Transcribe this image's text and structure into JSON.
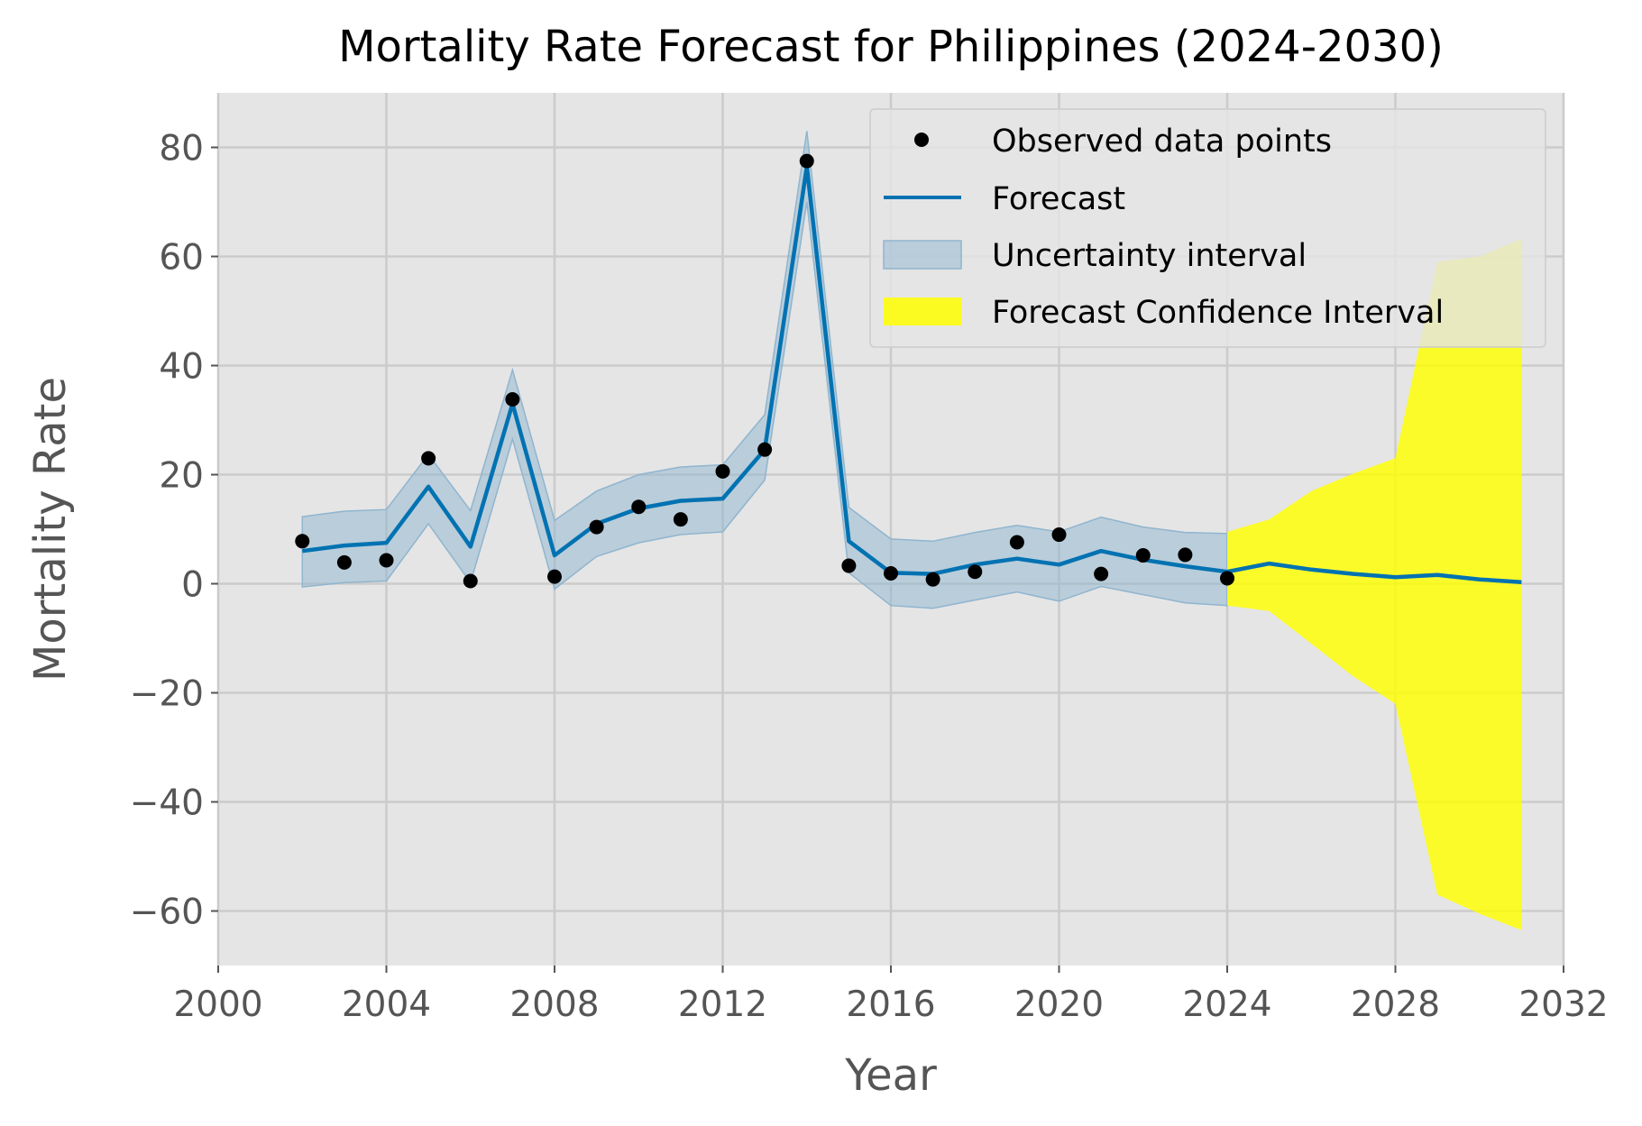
{
  "chart_data": {
    "type": "line",
    "title": "Mortality Rate Forecast for Philippines (2024-2030)",
    "xlabel": "Year",
    "ylabel": "Mortality Rate",
    "xlim": [
      2000,
      2032
    ],
    "ylim": [
      -70,
      90
    ],
    "xticks": [
      2000,
      2004,
      2008,
      2012,
      2016,
      2020,
      2024,
      2028,
      2032
    ],
    "xtick_labels": [
      "2000",
      "2004",
      "2008",
      "2012",
      "2016",
      "2020",
      "2024",
      "2028",
      "2032"
    ],
    "yticks": [
      -60,
      -40,
      -20,
      0,
      20,
      40,
      60,
      80
    ],
    "ytick_labels": [
      "−60",
      "−40",
      "−20",
      "0",
      "20",
      "40",
      "60",
      "80"
    ],
    "grid": true,
    "legend_position": "top-right",
    "colors": {
      "plot_background": "#e5e5e5",
      "grid": "#cbcbcb",
      "observed": "#000000",
      "forecast": "#0072b2",
      "uncertainty": "#8fb5cf",
      "forecast_ci": "#ffff00"
    },
    "legend": [
      {
        "key": "observed",
        "label": "Observed data points"
      },
      {
        "key": "forecast",
        "label": "Forecast"
      },
      {
        "key": "uncertainty",
        "label": "Uncertainty interval"
      },
      {
        "key": "forecast_ci",
        "label": "Forecast Confidence Interval"
      }
    ],
    "observed": {
      "x": [
        2002,
        2003,
        2004,
        2005,
        2006,
        2007,
        2008,
        2009,
        2010,
        2011,
        2012,
        2013,
        2014,
        2015,
        2016,
        2017,
        2018,
        2019,
        2020,
        2021,
        2022,
        2023,
        2024
      ],
      "y": [
        7.8,
        3.9,
        4.3,
        23.0,
        0.5,
        33.8,
        1.3,
        10.4,
        14.1,
        11.8,
        20.6,
        24.6,
        77.5,
        3.3,
        1.9,
        0.8,
        2.2,
        7.6,
        9.0,
        1.8,
        5.2,
        5.3,
        1.0
      ]
    },
    "forecast": {
      "x": [
        2002,
        2003,
        2004,
        2005,
        2006,
        2007,
        2008,
        2009,
        2010,
        2011,
        2012,
        2013,
        2014,
        2015,
        2016,
        2017,
        2018,
        2019,
        2020,
        2021,
        2022,
        2023,
        2024,
        2025,
        2026,
        2027,
        2028,
        2029,
        2030,
        2031
      ],
      "y": [
        6.0,
        7.0,
        7.5,
        17.8,
        6.8,
        33.0,
        5.2,
        11.0,
        13.8,
        15.2,
        15.6,
        24.6,
        76.5,
        7.8,
        2.0,
        1.8,
        3.5,
        4.6,
        3.5,
        6.0,
        4.4,
        3.2,
        2.2,
        3.7,
        2.6,
        1.8,
        1.2,
        1.6,
        0.8,
        0.3
      ]
    },
    "uncertainty_interval": {
      "x": [
        2002,
        2003,
        2004,
        2005,
        2006,
        2007,
        2008,
        2009,
        2010,
        2011,
        2012,
        2013,
        2014,
        2015,
        2016,
        2017,
        2018,
        2019,
        2020,
        2021,
        2022,
        2023,
        2024
      ],
      "lower": [
        -0.6,
        0.2,
        0.5,
        11.0,
        0.2,
        26.5,
        -1.0,
        5.0,
        7.5,
        9.0,
        9.5,
        19.0,
        70.0,
        2.0,
        -4.0,
        -4.5,
        -3.0,
        -1.5,
        -3.2,
        -0.5,
        -2.0,
        -3.5,
        -4.0
      ],
      "upper": [
        12.3,
        13.3,
        13.6,
        23.7,
        13.4,
        39.2,
        11.6,
        17.0,
        20.0,
        21.4,
        21.8,
        31.0,
        83.0,
        14.0,
        8.2,
        7.8,
        9.4,
        10.7,
        9.5,
        12.2,
        10.4,
        9.4,
        9.2
      ]
    },
    "forecast_confidence_interval": {
      "x": [
        2024,
        2025,
        2026,
        2027,
        2028,
        2029,
        2030,
        2031
      ],
      "lower": [
        -4.0,
        -5.0,
        -11.0,
        -17.0,
        -22.0,
        -57.0,
        -60.5,
        -63.5
      ],
      "upper": [
        9.5,
        11.8,
        17.0,
        20.2,
        23.0,
        59.0,
        60.0,
        63.2
      ]
    }
  }
}
